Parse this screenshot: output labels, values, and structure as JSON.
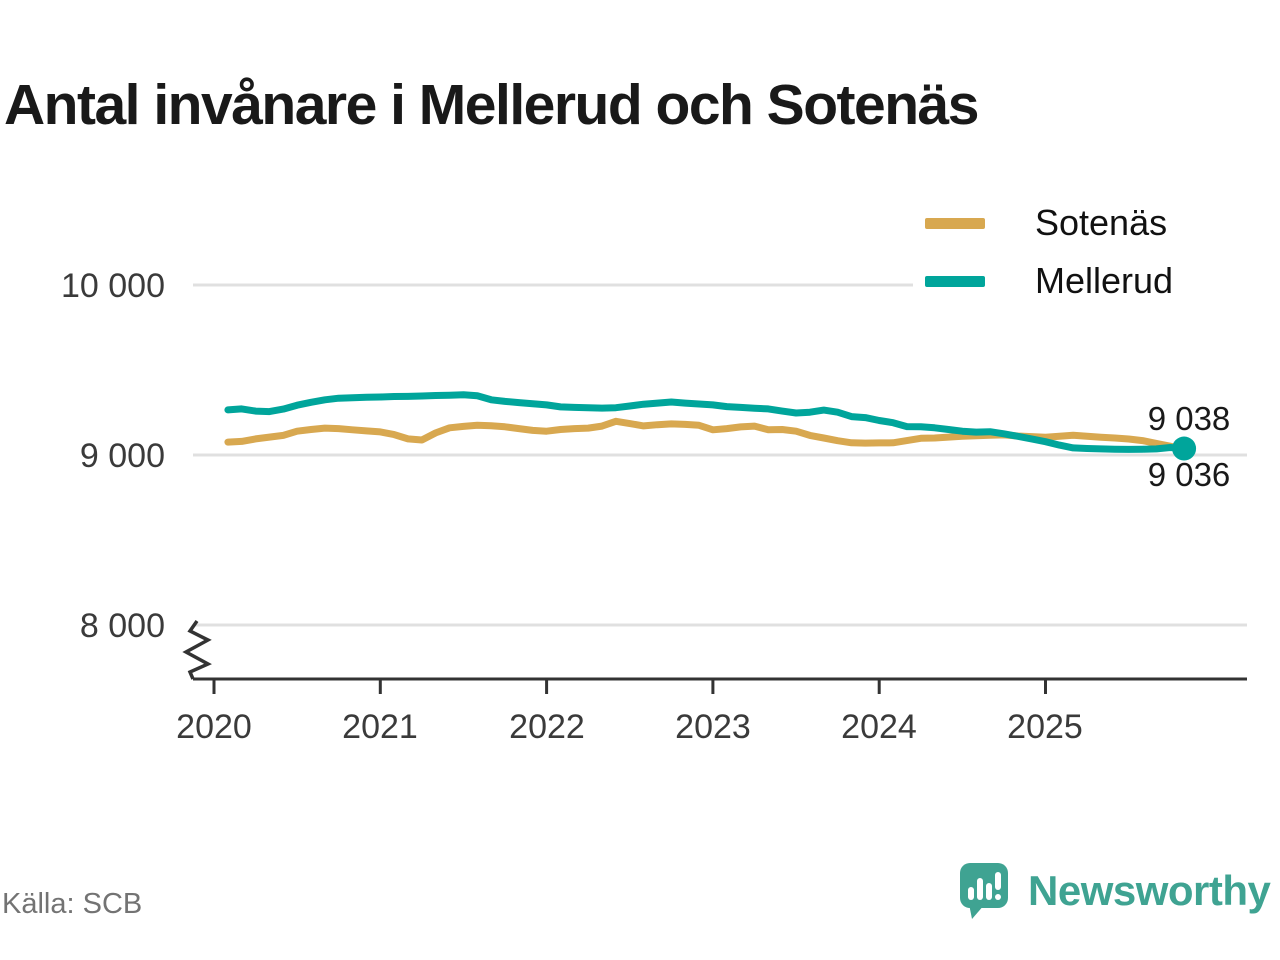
{
  "title": "Antal invånare i Mellerud och Sotenäs",
  "source": "Källa: SCB",
  "branding": {
    "name": "Newsworthy",
    "color": "#3FA392"
  },
  "colors": {
    "sotenas_line": "#D8A850",
    "mellerud_line": "#00A59B",
    "gridline": "#E0E0E0",
    "axis": "#333333",
    "tick_text": "#3a3a3a",
    "title_text": "#191919",
    "source_text": "#737373"
  },
  "chart_data": {
    "type": "line",
    "x_unit": "month",
    "x_start": "2020-01",
    "x_tick_labels": [
      "2020",
      "2021",
      "2022",
      "2023",
      "2024",
      "2025"
    ],
    "y_tick_labels": [
      "10 000",
      "9 000",
      "8 000"
    ],
    "y_tick_values": [
      10000,
      9000,
      8000
    ],
    "axis_break": true,
    "grid": "horizontal",
    "legend_position": "top-right",
    "series": [
      {
        "name": "Sotenäs",
        "color": "#D8A850",
        "end_label": "9 036",
        "end_dot": false,
        "values": [
          9076,
          9080,
          9095,
          9105,
          9115,
          9140,
          9150,
          9158,
          9155,
          9148,
          9142,
          9136,
          9120,
          9095,
          9088,
          9130,
          9160,
          9168,
          9175,
          9172,
          9166,
          9155,
          9145,
          9140,
          9150,
          9155,
          9158,
          9170,
          9198,
          9185,
          9171,
          9178,
          9183,
          9180,
          9175,
          9148,
          9155,
          9165,
          9170,
          9148,
          9150,
          9140,
          9115,
          9100,
          9084,
          9072,
          9070,
          9071,
          9072,
          9085,
          9098,
          9100,
          9105,
          9110,
          9113,
          9116,
          9118,
          9112,
          9108,
          9104,
          9110,
          9116,
          9110,
          9104,
          9100,
          9094,
          9085,
          9068,
          9052,
          9036
        ]
      },
      {
        "name": "Mellerud",
        "color": "#00A59B",
        "end_label": "9 038",
        "end_dot": true,
        "values": [
          9265,
          9271,
          9258,
          9255,
          9270,
          9293,
          9310,
          9325,
          9334,
          9337,
          9340,
          9341,
          9344,
          9345,
          9347,
          9350,
          9352,
          9354,
          9348,
          9325,
          9315,
          9308,
          9302,
          9295,
          9283,
          9280,
          9278,
          9276,
          9278,
          9288,
          9299,
          9305,
          9312,
          9305,
          9300,
          9295,
          9285,
          9280,
          9275,
          9271,
          9258,
          9247,
          9252,
          9264,
          9252,
          9226,
          9220,
          9203,
          9190,
          9167,
          9166,
          9160,
          9150,
          9140,
          9135,
          9137,
          9125,
          9110,
          9095,
          9078,
          9058,
          9042,
          9038,
          9036,
          9034,
          9033,
          9034,
          9036,
          9044,
          9038
        ]
      }
    ]
  }
}
